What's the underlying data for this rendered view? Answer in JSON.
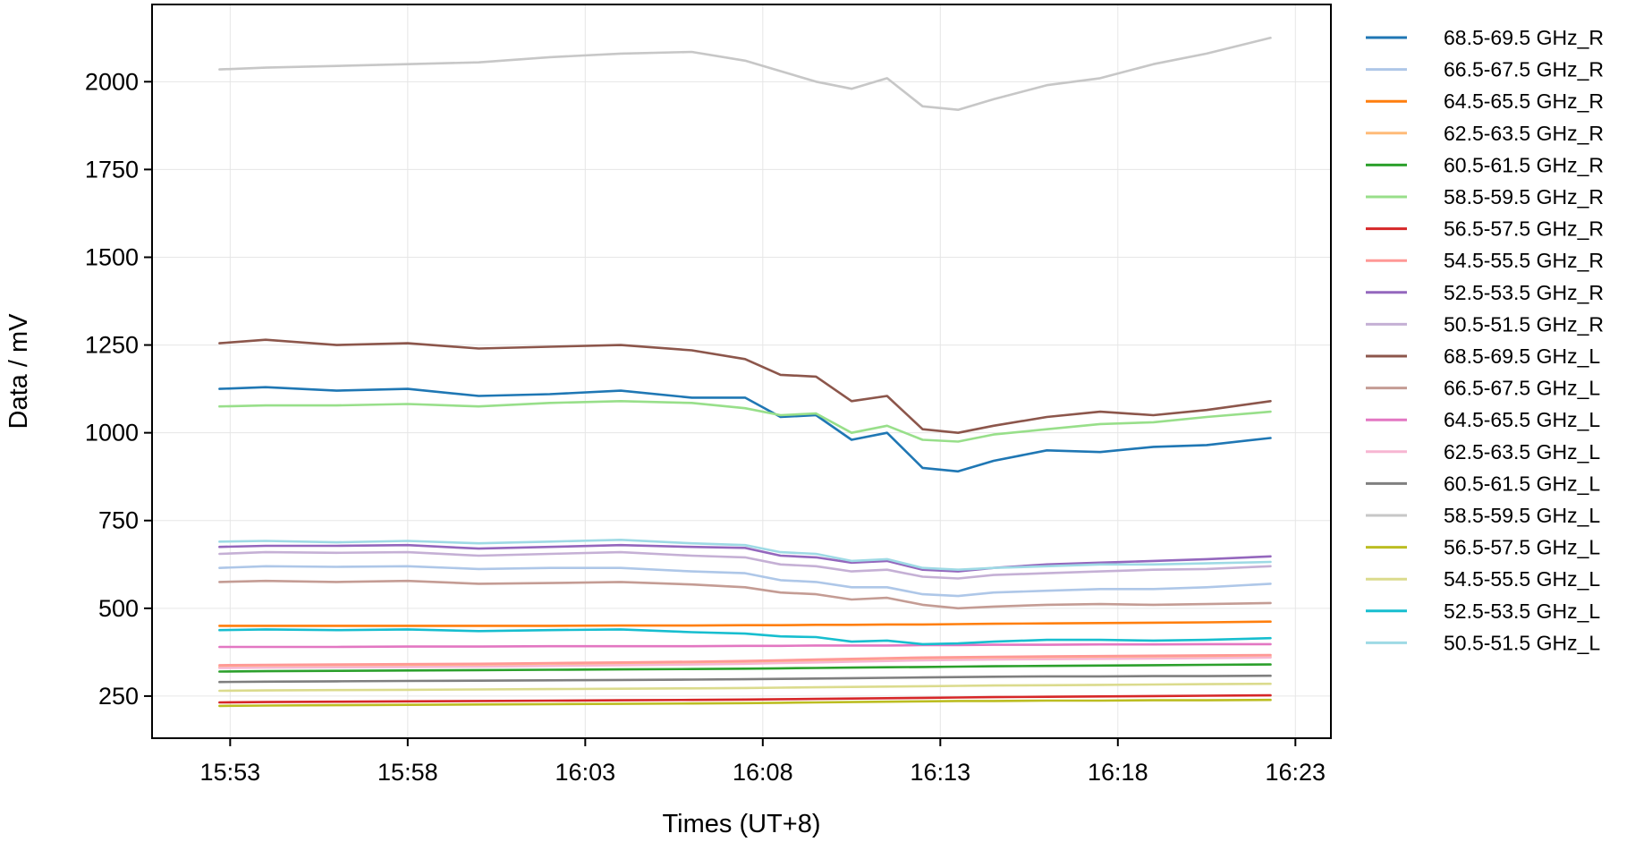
{
  "chart_data": {
    "type": "line",
    "xlabel": "Times (UT+8)",
    "ylabel": "Data / mV",
    "x_axis_unit": "time (HH:MM)",
    "xlim": [
      "15:50.8",
      "16:24"
    ],
    "ylim": [
      130,
      2220
    ],
    "x_ticks": [
      "15:53",
      "15:58",
      "16:03",
      "16:08",
      "16:13",
      "16:18",
      "16:23"
    ],
    "y_ticks": [
      250,
      500,
      750,
      1000,
      1250,
      1500,
      1750,
      2000
    ],
    "grid": true,
    "legend_position": "outside-right",
    "x": [
      "15:52.7",
      "15:54",
      "15:56",
      "15:58",
      "16:00",
      "16:02",
      "16:04",
      "16:06",
      "16:07.5",
      "16:08.5",
      "16:09.5",
      "16:10.5",
      "16:11.5",
      "16:12.5",
      "16:13.5",
      "16:14.5",
      "16:16",
      "16:17.5",
      "16:19",
      "16:20.5",
      "16:22.3"
    ],
    "series": [
      {
        "name": "68.5-69.5 GHz_R",
        "color": "#1f77b4",
        "values": [
          1125,
          1130,
          1120,
          1125,
          1105,
          1110,
          1120,
          1100,
          1100,
          1045,
          1050,
          980,
          1000,
          900,
          890,
          920,
          950,
          945,
          960,
          965,
          985
        ]
      },
      {
        "name": "66.5-67.5 GHz_R",
        "color": "#aec7e8",
        "values": [
          615,
          620,
          618,
          620,
          612,
          615,
          615,
          605,
          600,
          580,
          575,
          560,
          560,
          540,
          535,
          545,
          550,
          555,
          555,
          560,
          570
        ]
      },
      {
        "name": "64.5-65.5 GHz_R",
        "color": "#ff7f0e",
        "values": [
          450,
          450,
          450,
          450,
          450,
          450,
          451,
          451,
          452,
          452,
          453,
          453,
          454,
          454,
          455,
          456,
          457,
          458,
          459,
          460,
          462
        ]
      },
      {
        "name": "62.5-63.5 GHz_R",
        "color": "#ffbb78",
        "values": [
          333,
          334,
          335,
          336,
          337,
          338,
          340,
          342,
          344,
          346,
          348,
          350,
          352,
          354,
          355,
          357,
          358,
          359,
          360,
          361,
          362
        ]
      },
      {
        "name": "60.5-61.5 GHz_R",
        "color": "#2ca02c",
        "values": [
          320,
          321,
          322,
          323,
          324,
          325,
          326,
          327,
          328,
          329,
          330,
          331,
          332,
          333,
          334,
          335,
          336,
          337,
          338,
          339,
          340
        ]
      },
      {
        "name": "58.5-59.5 GHz_R",
        "color": "#98df8a",
        "values": [
          1075,
          1078,
          1078,
          1082,
          1075,
          1085,
          1090,
          1085,
          1070,
          1050,
          1055,
          1000,
          1020,
          980,
          975,
          995,
          1010,
          1025,
          1030,
          1045,
          1060
        ]
      },
      {
        "name": "56.5-57.5 GHz_R",
        "color": "#d62728",
        "values": [
          232,
          233,
          234,
          235,
          236,
          237,
          238,
          239,
          240,
          241,
          242,
          243,
          244,
          245,
          246,
          247,
          248,
          249,
          250,
          251,
          252
        ]
      },
      {
        "name": "54.5-55.5 GHz_R",
        "color": "#ff9896",
        "values": [
          338,
          339,
          340,
          341,
          342,
          344,
          346,
          348,
          350,
          352,
          354,
          356,
          358,
          360,
          361,
          362,
          363,
          364,
          365,
          366,
          367
        ]
      },
      {
        "name": "52.5-53.5 GHz_R",
        "color": "#9467bd",
        "values": [
          675,
          678,
          678,
          680,
          670,
          675,
          680,
          675,
          672,
          650,
          645,
          630,
          635,
          610,
          605,
          615,
          625,
          630,
          635,
          640,
          648
        ]
      },
      {
        "name": "50.5-51.5 GHz_R",
        "color": "#c5b0d5",
        "values": [
          655,
          660,
          658,
          660,
          650,
          655,
          660,
          650,
          645,
          625,
          620,
          605,
          610,
          590,
          585,
          595,
          600,
          605,
          610,
          612,
          620
        ]
      },
      {
        "name": "68.5-69.5 GHz_L",
        "color": "#8c564b",
        "values": [
          1255,
          1265,
          1250,
          1255,
          1240,
          1245,
          1250,
          1235,
          1210,
          1165,
          1160,
          1090,
          1105,
          1010,
          1000,
          1020,
          1045,
          1060,
          1050,
          1065,
          1090
        ]
      },
      {
        "name": "66.5-67.5 GHz_L",
        "color": "#c49c94",
        "values": [
          575,
          578,
          575,
          578,
          570,
          572,
          575,
          568,
          560,
          545,
          540,
          525,
          530,
          510,
          500,
          505,
          510,
          512,
          510,
          512,
          515
        ]
      },
      {
        "name": "64.5-65.5 GHz_L",
        "color": "#e377c2",
        "values": [
          390,
          390,
          390,
          391,
          391,
          392,
          392,
          392,
          393,
          393,
          394,
          394,
          394,
          395,
          395,
          396,
          396,
          397,
          397,
          398,
          398
        ]
      },
      {
        "name": "62.5-63.5 GHz_L",
        "color": "#f7b6d2",
        "values": [
          330,
          331,
          332,
          333,
          334,
          336,
          338,
          340,
          342,
          344,
          346,
          348,
          350,
          352,
          353,
          354,
          355,
          356,
          357,
          358,
          360
        ]
      },
      {
        "name": "60.5-61.5 GHz_L",
        "color": "#7f7f7f",
        "values": [
          290,
          291,
          292,
          293,
          294,
          295,
          296,
          297,
          298,
          299,
          300,
          301,
          302,
          303,
          304,
          305,
          306,
          306,
          307,
          307,
          308
        ]
      },
      {
        "name": "58.5-59.5 GHz_L",
        "color": "#c7c7c7",
        "values": [
          2035,
          2040,
          2045,
          2050,
          2055,
          2070,
          2080,
          2085,
          2060,
          2030,
          2000,
          1980,
          2010,
          1930,
          1920,
          1950,
          1990,
          2010,
          2050,
          2080,
          2125
        ]
      },
      {
        "name": "56.5-57.5 GHz_L",
        "color": "#bcbd22",
        "values": [
          222,
          223,
          224,
          225,
          226,
          227,
          228,
          229,
          230,
          231,
          232,
          233,
          234,
          235,
          236,
          236,
          237,
          237,
          238,
          238,
          239
        ]
      },
      {
        "name": "54.5-55.5 GHz_L",
        "color": "#dbdb8d",
        "values": [
          265,
          266,
          267,
          268,
          269,
          270,
          271,
          272,
          273,
          274,
          275,
          276,
          277,
          278,
          279,
          280,
          281,
          282,
          283,
          284,
          285
        ]
      },
      {
        "name": "52.5-53.5 GHz_L",
        "color": "#17becf",
        "values": [
          438,
          440,
          438,
          440,
          435,
          438,
          440,
          432,
          428,
          420,
          418,
          405,
          408,
          398,
          400,
          405,
          410,
          410,
          408,
          410,
          415
        ]
      },
      {
        "name": "50.5-51.5 GHz_L",
        "color": "#9edae5",
        "values": [
          690,
          692,
          688,
          692,
          685,
          690,
          695,
          685,
          680,
          660,
          655,
          635,
          640,
          615,
          610,
          615,
          620,
          625,
          625,
          628,
          632
        ]
      }
    ]
  }
}
